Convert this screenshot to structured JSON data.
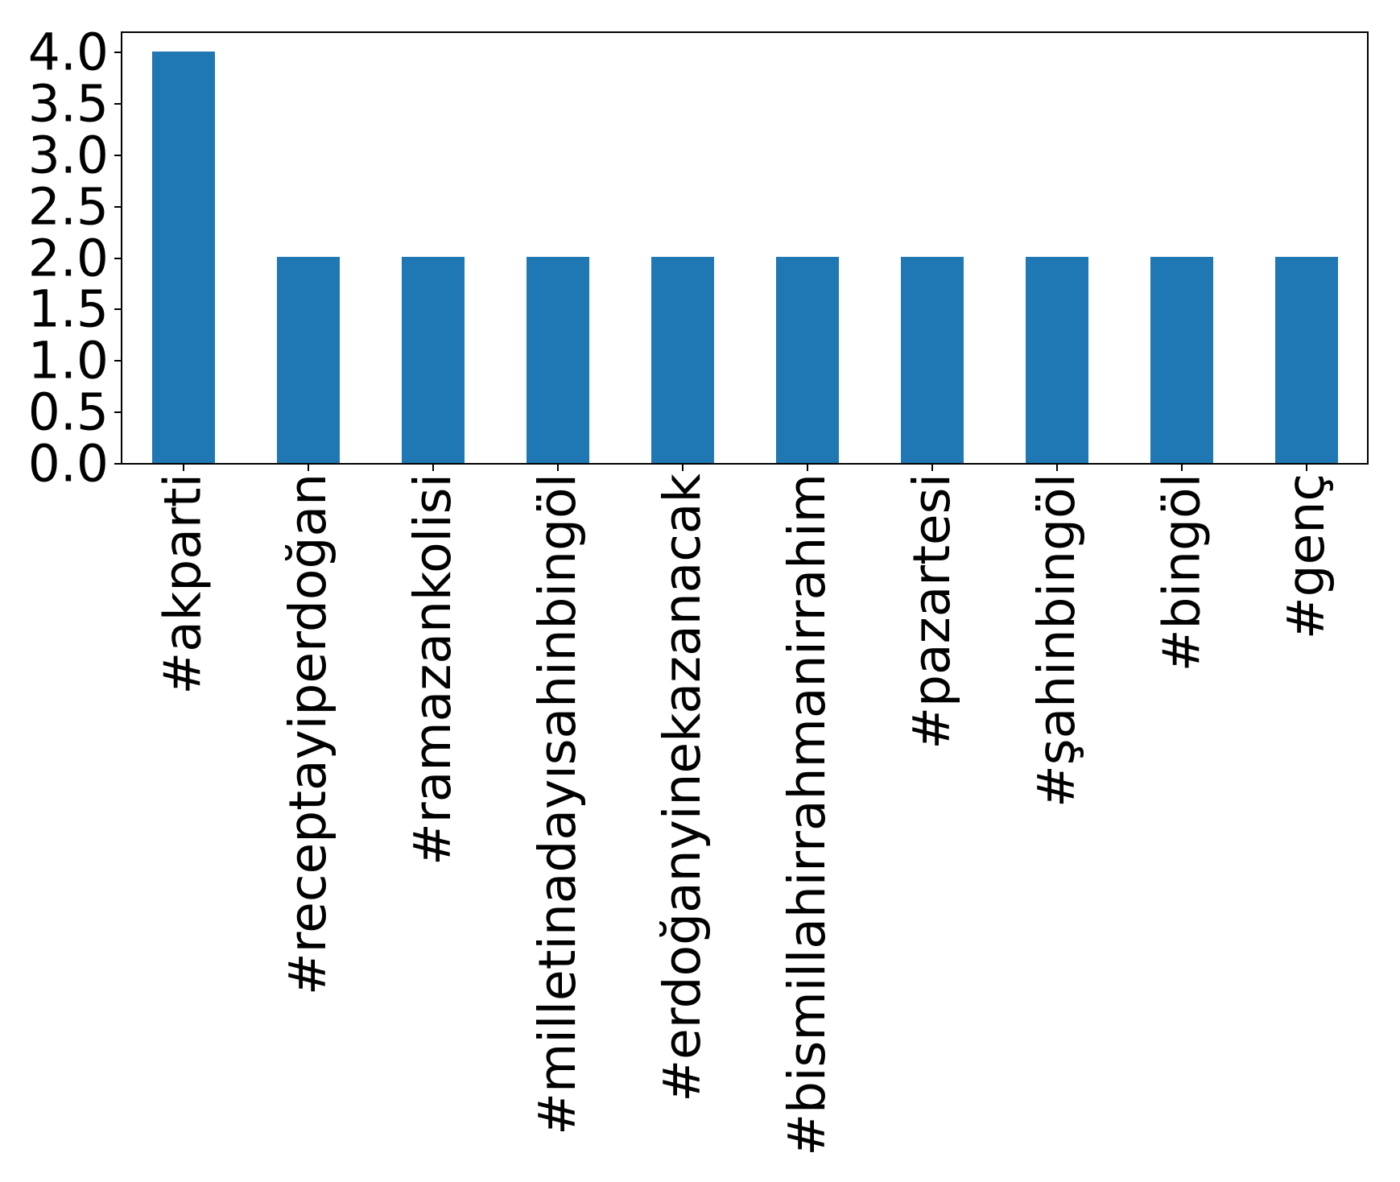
{
  "chart_data": {
    "type": "bar",
    "title": "",
    "xlabel": "",
    "ylabel": "",
    "categories": [
      "#akparti",
      "#receptayiperdoğan",
      "#ramazankolisi",
      "#milletinadayısahinbingöl",
      "#erdoğanyinekazanacak",
      "#bismillahirrahmanirrahim",
      "#pazartesi",
      "#şahinbingöl",
      "#bingöl",
      "#genç"
    ],
    "values": [
      4,
      2,
      2,
      2,
      2,
      2,
      2,
      2,
      2,
      2
    ],
    "ylim": [
      0.0,
      4.2
    ],
    "yticks": [
      0.0,
      0.5,
      1.0,
      1.5,
      2.0,
      2.5,
      3.0,
      3.5,
      4.0
    ],
    "ytick_labels": [
      "0.0",
      "0.5",
      "1.0",
      "1.5",
      "2.0",
      "2.5",
      "3.0",
      "3.5",
      "4.0"
    ],
    "bar_color": "#1f77b4",
    "spine_color": "#000000",
    "tick_label_color": "#000000",
    "xtick_rotation_deg": 90,
    "grid": false,
    "legend": false
  }
}
